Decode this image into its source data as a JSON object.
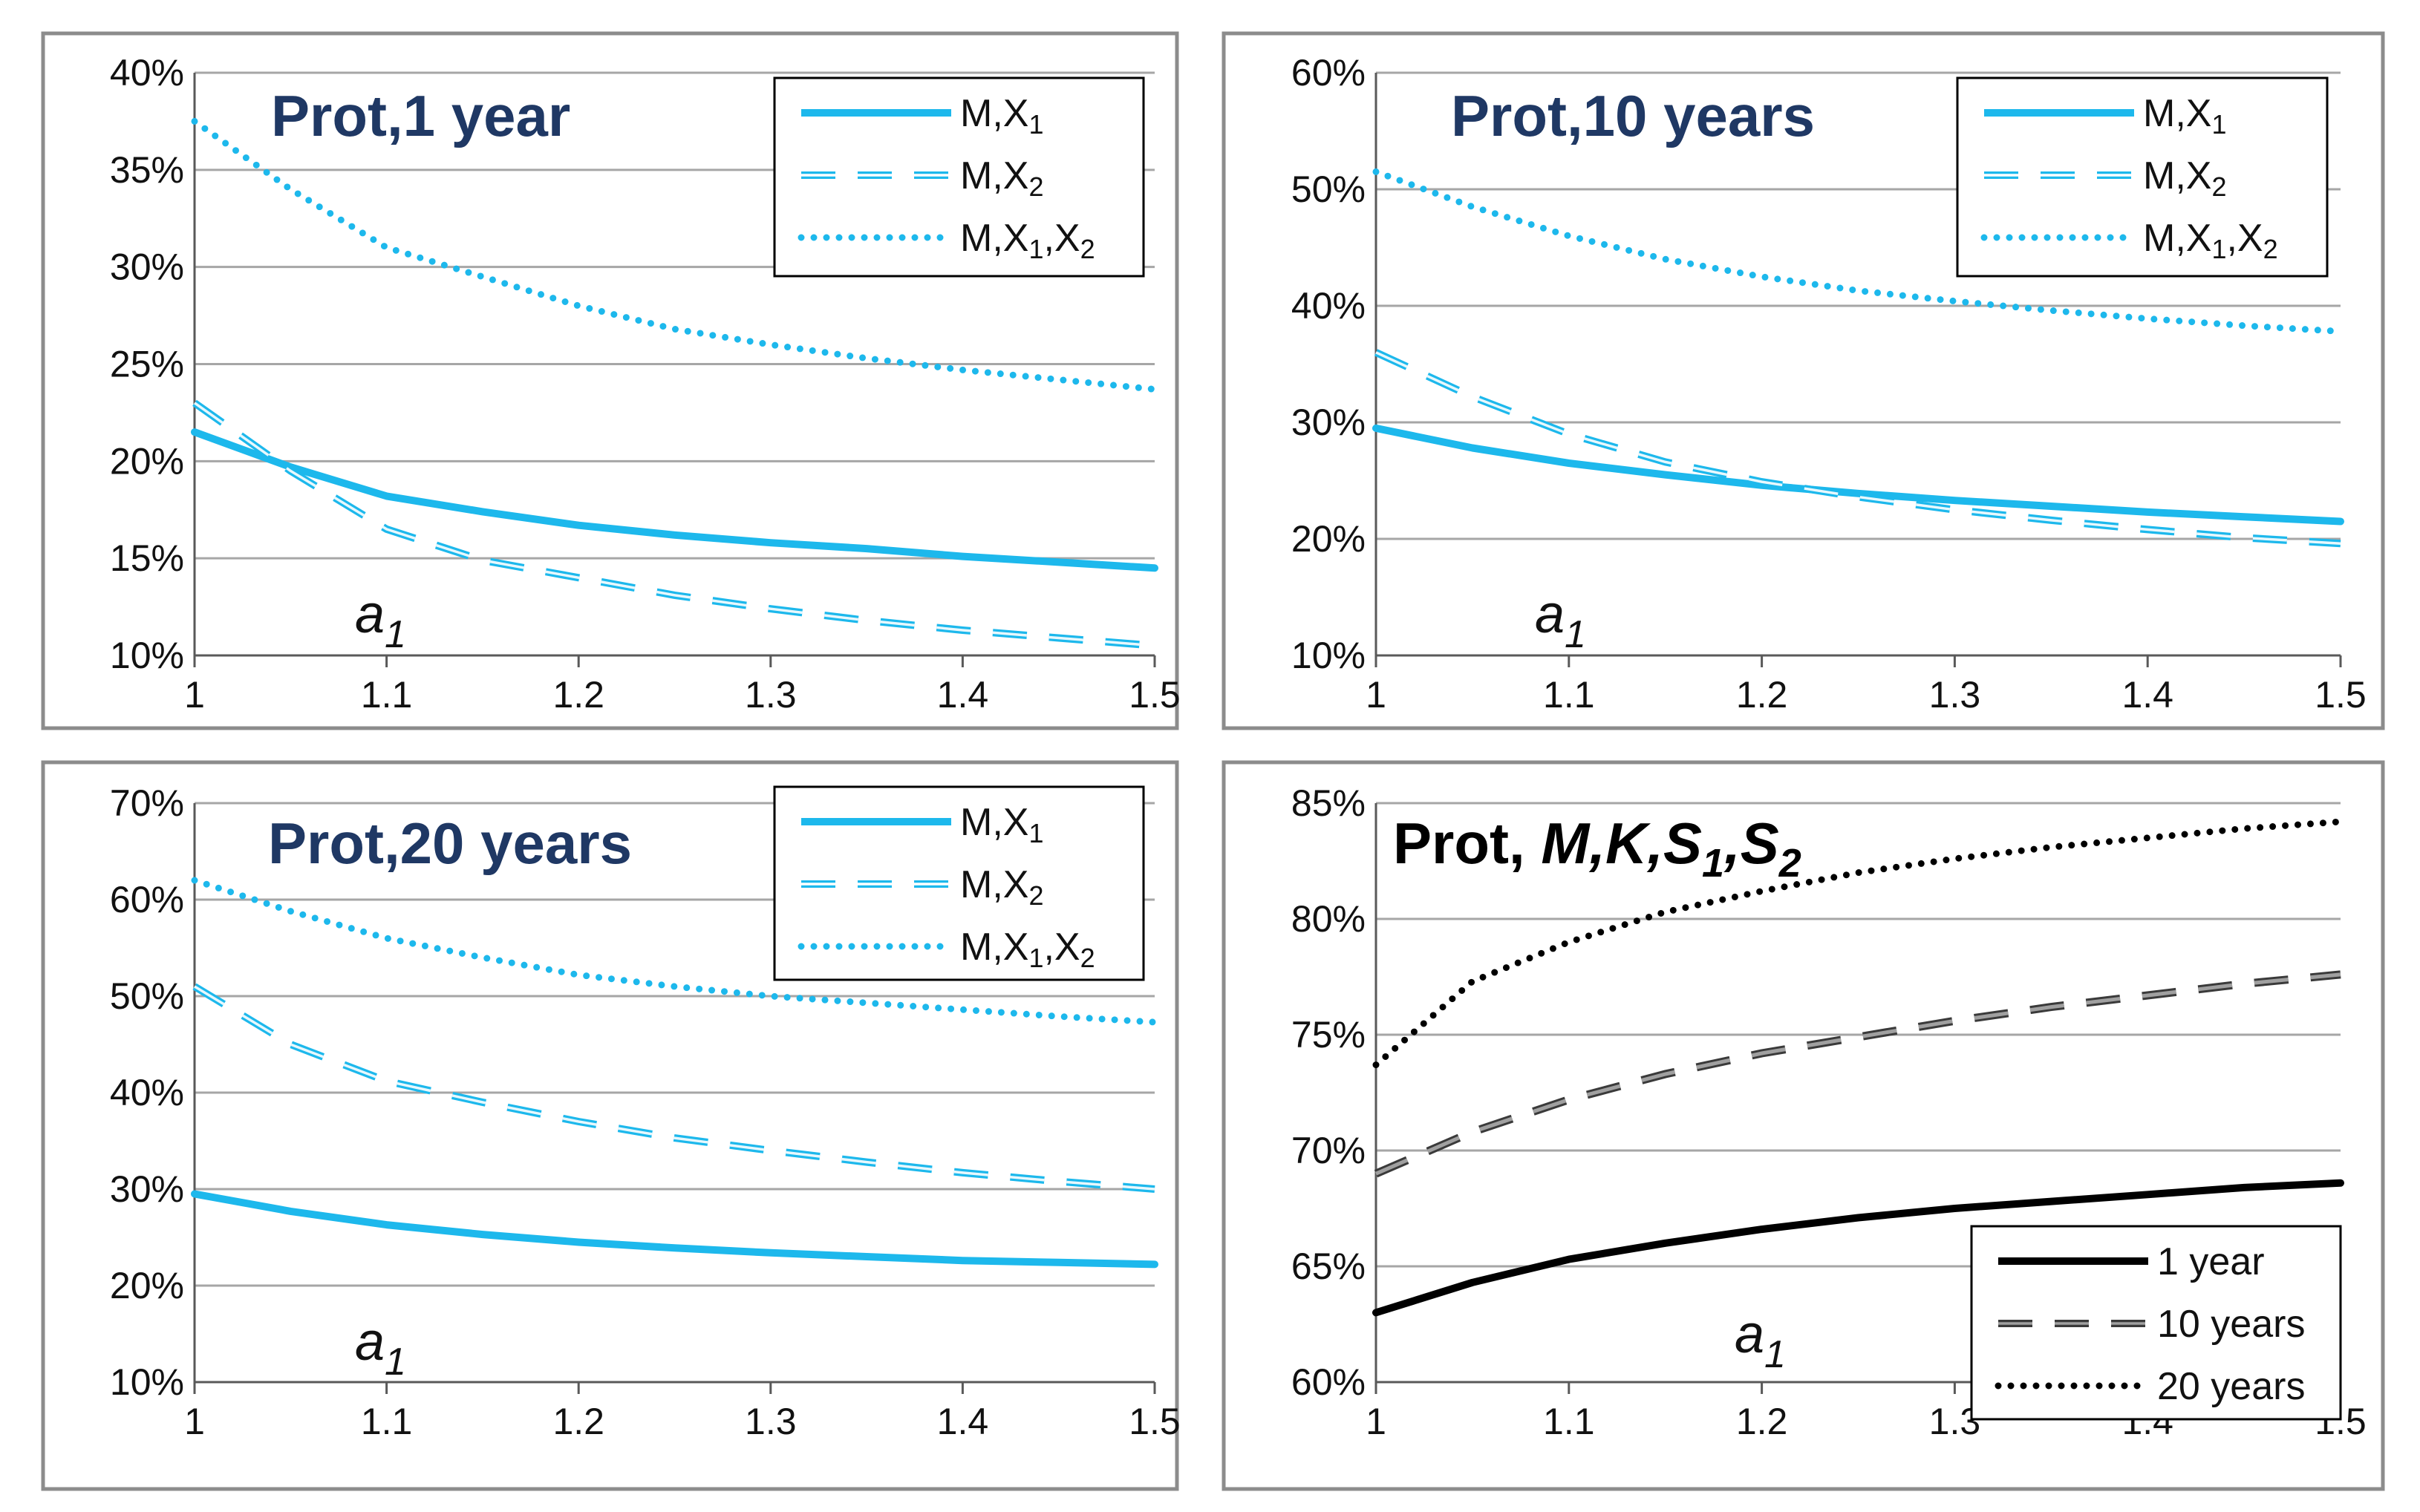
{
  "colors": {
    "cyan": "#1db8ec",
    "black": "#000000",
    "grey": "#7f7f7f",
    "title_blue": "#1f3864",
    "grid": "#a6a6a6"
  },
  "chart_data": [
    {
      "type": "line",
      "title": "Prot,1 year",
      "xlabel": "a1",
      "xlabel_main": "a",
      "xlabel_sub": "1",
      "x": [
        1,
        1.05,
        1.1,
        1.15,
        1.2,
        1.25,
        1.3,
        1.35,
        1.4,
        1.45,
        1.5
      ],
      "xticks": [
        "1",
        "1.1",
        "1.2",
        "1.3",
        "1.4",
        "1.5"
      ],
      "xlim": [
        1,
        1.5
      ],
      "ylim": [
        0.1,
        0.4
      ],
      "yticks": [
        "10%",
        "15%",
        "20%",
        "25%",
        "30%",
        "35%",
        "40%"
      ],
      "legend_position": "top-right",
      "series": [
        {
          "name": "M,X1",
          "label_main": "M,X",
          "label_sub": "1",
          "label_tail": "",
          "style": "solid",
          "color": "#1db8ec",
          "values": [
            0.215,
            0.197,
            0.182,
            0.174,
            0.167,
            0.162,
            0.158,
            0.155,
            0.151,
            0.148,
            0.145
          ]
        },
        {
          "name": "M,X2",
          "label_main": "M,X",
          "label_sub": "2",
          "label_tail": "",
          "style": "dashed",
          "color": "#1db8ec",
          "values": [
            0.23,
            0.195,
            0.165,
            0.149,
            0.14,
            0.131,
            0.124,
            0.118,
            0.113,
            0.109,
            0.105
          ]
        },
        {
          "name": "M,X1,X2",
          "label_main": "M,X",
          "label_sub": "1",
          "label_tail": ",X",
          "label_sub2": "2",
          "style": "dotted",
          "color": "#1db8ec",
          "values": [
            0.375,
            0.34,
            0.31,
            0.295,
            0.28,
            0.268,
            0.26,
            0.253,
            0.247,
            0.242,
            0.237
          ]
        }
      ]
    },
    {
      "type": "line",
      "title": "Prot,10 years",
      "xlabel": "a1",
      "xlabel_main": "a",
      "xlabel_sub": "1",
      "x": [
        1,
        1.05,
        1.1,
        1.15,
        1.2,
        1.25,
        1.3,
        1.35,
        1.4,
        1.45,
        1.5
      ],
      "xticks": [
        "1",
        "1.1",
        "1.2",
        "1.3",
        "1.4",
        "1.5"
      ],
      "xlim": [
        1,
        1.5
      ],
      "ylim": [
        0.1,
        0.6
      ],
      "yticks": [
        "10%",
        "20%",
        "30%",
        "40%",
        "50%",
        "60%"
      ],
      "legend_position": "top-right",
      "series": [
        {
          "name": "M,X1",
          "label_main": "M,X",
          "label_sub": "1",
          "label_tail": "",
          "style": "solid",
          "color": "#1db8ec",
          "values": [
            0.295,
            0.278,
            0.265,
            0.255,
            0.246,
            0.239,
            0.233,
            0.228,
            0.223,
            0.219,
            0.215
          ]
        },
        {
          "name": "M,X2",
          "label_main": "M,X",
          "label_sub": "2",
          "label_tail": "",
          "style": "dashed",
          "color": "#1db8ec",
          "values": [
            0.36,
            0.322,
            0.29,
            0.266,
            0.249,
            0.236,
            0.225,
            0.216,
            0.208,
            0.201,
            0.196
          ]
        },
        {
          "name": "M,X1,X2",
          "label_main": "M,X",
          "label_sub": "1",
          "label_tail": ",X",
          "label_sub2": "2",
          "style": "dotted",
          "color": "#1db8ec",
          "values": [
            0.515,
            0.485,
            0.46,
            0.44,
            0.425,
            0.413,
            0.404,
            0.396,
            0.389,
            0.383,
            0.378
          ]
        }
      ]
    },
    {
      "type": "line",
      "title": "Prot,20 years",
      "xlabel": "a1",
      "xlabel_main": "a",
      "xlabel_sub": "1",
      "x": [
        1,
        1.05,
        1.1,
        1.15,
        1.2,
        1.25,
        1.3,
        1.35,
        1.4,
        1.45,
        1.5
      ],
      "xticks": [
        "1",
        "1.1",
        "1.2",
        "1.3",
        "1.4",
        "1.5"
      ],
      "xlim": [
        1,
        1.5
      ],
      "ylim": [
        0.1,
        0.7
      ],
      "yticks": [
        "10%",
        "20%",
        "30%",
        "40%",
        "50%",
        "60%",
        "70%"
      ],
      "legend_position": "top-right",
      "series": [
        {
          "name": "M,X1",
          "label_main": "M,X",
          "label_sub": "1",
          "label_tail": "",
          "style": "solid",
          "color": "#1db8ec",
          "values": [
            0.295,
            0.277,
            0.263,
            0.253,
            0.245,
            0.239,
            0.234,
            0.23,
            0.226,
            0.224,
            0.222
          ]
        },
        {
          "name": "M,X2",
          "label_main": "M,X",
          "label_sub": "2",
          "label_tail": "",
          "style": "dashed",
          "color": "#1db8ec",
          "values": [
            0.51,
            0.45,
            0.412,
            0.39,
            0.37,
            0.353,
            0.34,
            0.328,
            0.317,
            0.308,
            0.3
          ]
        },
        {
          "name": "M,X1,X2",
          "label_main": "M,X",
          "label_sub": "1",
          "label_tail": ",X",
          "label_sub2": "2",
          "style": "dotted",
          "color": "#1db8ec",
          "values": [
            0.62,
            0.588,
            0.56,
            0.54,
            0.522,
            0.51,
            0.5,
            0.493,
            0.486,
            0.479,
            0.473
          ]
        }
      ]
    },
    {
      "type": "line",
      "title": "Prot, M,K,S1,S2",
      "title_prefix": "Prot, ",
      "title_italic": "M,K,S",
      "title_sub1": "1",
      "title_mid": ",S",
      "title_sub2": "2",
      "xlabel": "a1",
      "xlabel_main": "a",
      "xlabel_sub": "1",
      "x": [
        1,
        1.05,
        1.1,
        1.15,
        1.2,
        1.25,
        1.3,
        1.35,
        1.4,
        1.45,
        1.5
      ],
      "xticks": [
        "1",
        "1.1",
        "1.2",
        "1.3",
        "1.4",
        "1.5"
      ],
      "xlim": [
        1,
        1.5
      ],
      "ylim": [
        0.6,
        0.85
      ],
      "yticks": [
        "60%",
        "65%",
        "70%",
        "75%",
        "80%",
        "85%"
      ],
      "legend_position": "bottom-right",
      "series": [
        {
          "name": "1 year",
          "label_main": "1 year",
          "label_sub": "",
          "label_tail": "",
          "style": "solid",
          "color": "#000000",
          "values": [
            0.63,
            0.643,
            0.653,
            0.66,
            0.666,
            0.671,
            0.675,
            0.678,
            0.681,
            0.684,
            0.686
          ]
        },
        {
          "name": "10 years",
          "label_main": "10 years",
          "label_sub": "",
          "label_tail": "",
          "style": "dashed",
          "color": "#7f7f7f",
          "values": [
            0.69,
            0.708,
            0.722,
            0.733,
            0.742,
            0.749,
            0.756,
            0.762,
            0.767,
            0.772,
            0.776
          ]
        },
        {
          "name": "20 years",
          "label_main": "20 years",
          "label_sub": "",
          "label_tail": "",
          "style": "dotted",
          "color": "#000000",
          "values": [
            0.737,
            0.773,
            0.79,
            0.803,
            0.812,
            0.82,
            0.826,
            0.831,
            0.835,
            0.839,
            0.842
          ]
        }
      ]
    }
  ]
}
